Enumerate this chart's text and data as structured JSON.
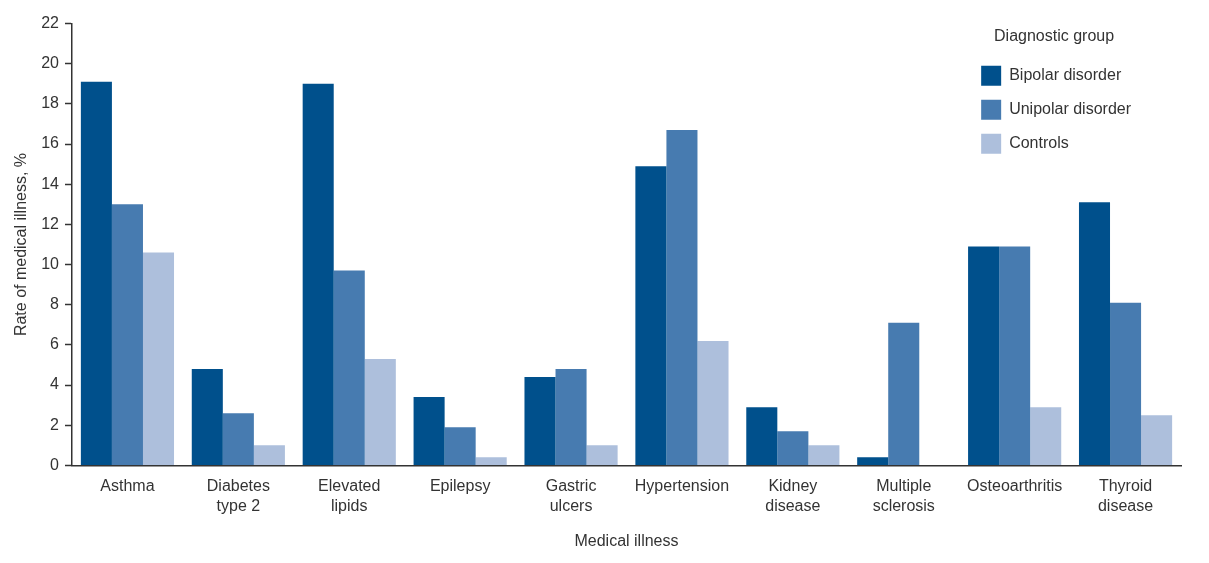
{
  "chart_data": {
    "type": "bar",
    "xlabel": "Medical illness",
    "ylabel": "Rate of medical illness, %",
    "legend_title": "Diagnostic group",
    "categories": [
      "Asthma",
      "Diabetes type 2",
      "Elevated lipids",
      "Epilepsy",
      "Gastric ulcers",
      "Hypertension",
      "Kidney disease",
      "Multiple sclerosis",
      "Osteoarthritis",
      "Thyroid disease"
    ],
    "series": [
      {
        "name": "Bipolar disorder",
        "color": "#00508c",
        "values": [
          19.1,
          4.8,
          19.0,
          3.4,
          4.4,
          14.9,
          2.9,
          0.4,
          10.9,
          13.1
        ]
      },
      {
        "name": "Unipolar disorder",
        "color": "#477bb0",
        "values": [
          13.0,
          2.6,
          9.7,
          1.9,
          4.8,
          16.7,
          1.7,
          7.1,
          10.9,
          8.1
        ]
      },
      {
        "name": "Controls",
        "color": "#adbfdc",
        "values": [
          10.6,
          1.0,
          5.3,
          0.4,
          1.0,
          6.2,
          1.0,
          0,
          2.9,
          2.5
        ]
      }
    ],
    "ylim": [
      0,
      22
    ],
    "yticks": [
      0,
      2,
      4,
      6,
      8,
      10,
      12,
      14,
      16,
      18,
      20,
      22
    ],
    "grid": false,
    "legend": "top right"
  }
}
